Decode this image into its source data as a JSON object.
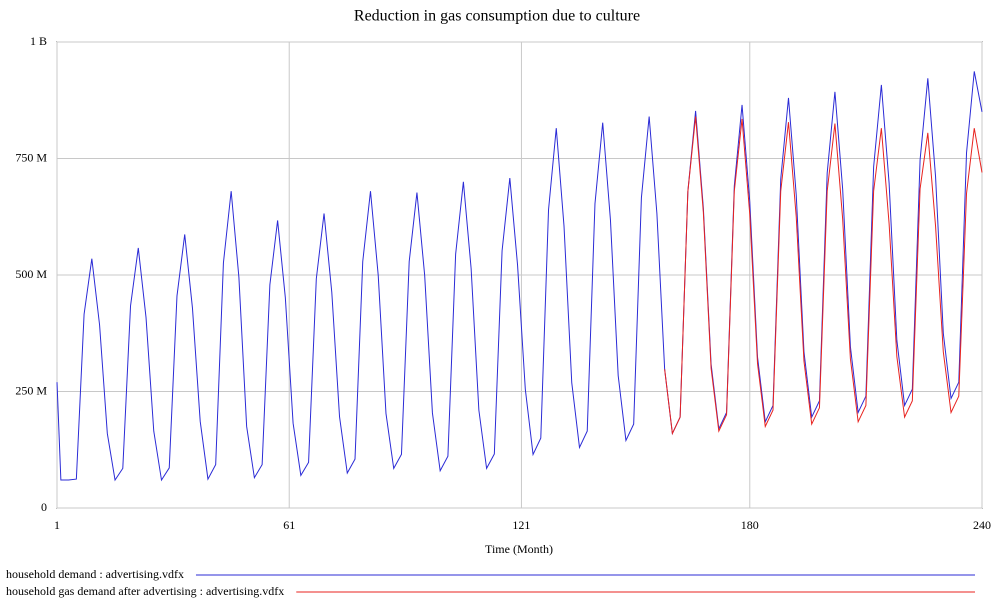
{
  "chart_data": {
    "type": "line",
    "title": "Reduction in gas consumption due to culture",
    "x_label": "Time (Month)",
    "x": [
      1,
      2,
      4,
      6,
      8,
      10,
      12,
      14,
      16,
      18,
      20,
      22,
      24,
      26,
      28,
      30,
      32,
      34,
      36,
      38,
      40,
      42,
      44,
      46,
      48,
      50,
      52,
      54,
      56,
      58,
      60,
      62,
      64,
      66,
      68,
      70,
      72,
      74,
      76,
      78,
      80,
      82,
      84,
      86,
      88,
      90,
      92,
      94,
      96,
      98,
      100,
      102,
      104,
      106,
      108,
      110,
      112,
      114,
      116,
      118,
      120,
      122,
      124,
      126,
      128,
      130,
      132,
      134,
      136,
      138,
      140,
      142,
      144,
      146,
      148,
      150,
      152,
      154,
      156,
      158,
      160,
      162,
      164,
      166,
      168,
      170,
      172,
      174,
      176,
      178,
      180,
      182,
      184,
      186,
      188,
      190,
      192,
      194,
      196,
      198,
      200,
      202,
      204,
      206,
      208,
      210,
      212,
      214,
      216,
      218,
      220,
      222,
      224,
      226,
      228,
      230,
      232,
      234,
      236,
      238,
      240
    ],
    "series": [
      {
        "name": "household demand : advertising.vdfx",
        "color": "#2b2bd6",
        "values": [
          270000000,
          60000000,
          60000000,
          62000000,
          416000000,
          535000000,
          393000000,
          160000000,
          60000000,
          85000000,
          434000000,
          558000000,
          409000000,
          165000000,
          60000000,
          86000000,
          455000000,
          587000000,
          429000000,
          186000000,
          62000000,
          93000000,
          526000000,
          680000000,
          495000000,
          175000000,
          65000000,
          93000000,
          479000000,
          617000000,
          451000000,
          182000000,
          70000000,
          98000000,
          492000000,
          632000000,
          463000000,
          196000000,
          75000000,
          105000000,
          529000000,
          680000000,
          499000000,
          203000000,
          85000000,
          115000000,
          529000000,
          677000000,
          499000000,
          204000000,
          80000000,
          111000000,
          545000000,
          700000000,
          514000000,
          210000000,
          85000000,
          116000000,
          552000000,
          708000000,
          521000000,
          255000000,
          115000000,
          150000000,
          640000000,
          815000000,
          605000000,
          269000000,
          130000000,
          165000000,
          653000000,
          827000000,
          618000000,
          284000000,
          145000000,
          180000000,
          666000000,
          840000000,
          632000000,
          298000000,
          160000000,
          195000000,
          679000000,
          852000000,
          644000000,
          309000000,
          170000000,
          205000000,
          691000000,
          865000000,
          657000000,
          324000000,
          185000000,
          220000000,
          706000000,
          880000000,
          672000000,
          335000000,
          195000000,
          230000000,
          719000000,
          893000000,
          684000000,
          346000000,
          205000000,
          240000000,
          732000000,
          908000000,
          697000000,
          360000000,
          220000000,
          255000000,
          747000000,
          922000000,
          711000000,
          375000000,
          235000000,
          270000000,
          762000000,
          937000000,
          850000000
        ]
      },
      {
        "name": "household gas demand after advertising : advertising.vdfx",
        "color": "#e8231f",
        "values": [
          null,
          null,
          null,
          null,
          null,
          null,
          null,
          null,
          null,
          null,
          null,
          null,
          null,
          null,
          null,
          null,
          null,
          null,
          null,
          null,
          null,
          null,
          null,
          null,
          null,
          null,
          null,
          null,
          null,
          null,
          null,
          null,
          null,
          null,
          null,
          null,
          null,
          null,
          null,
          null,
          null,
          null,
          null,
          null,
          null,
          null,
          null,
          null,
          null,
          null,
          null,
          null,
          null,
          null,
          null,
          null,
          null,
          null,
          null,
          null,
          null,
          null,
          null,
          null,
          null,
          null,
          null,
          null,
          null,
          null,
          null,
          null,
          null,
          null,
          null,
          null,
          null,
          null,
          null,
          298000000,
          160000000,
          195000000,
          679000000,
          840000000,
          635000000,
          300000000,
          165000000,
          200000000,
          680000000,
          835000000,
          630000000,
          310000000,
          175000000,
          210000000,
          680000000,
          828000000,
          625000000,
          315000000,
          180000000,
          215000000,
          680000000,
          825000000,
          620000000,
          320000000,
          185000000,
          220000000,
          680000000,
          815000000,
          610000000,
          325000000,
          195000000,
          230000000,
          685000000,
          805000000,
          605000000,
          335000000,
          205000000,
          240000000,
          675000000,
          815000000,
          720000000
        ]
      }
    ],
    "xlim": [
      1,
      240
    ],
    "xticks": [
      1,
      61,
      121,
      180,
      240
    ],
    "ylim": [
      0,
      1000000000
    ],
    "yticks": [
      0,
      {
        "value": 250000000,
        "label": "250 M"
      },
      {
        "value": 500000000,
        "label": "500 M"
      },
      {
        "value": 750000000,
        "label": "750 M"
      },
      {
        "value": 1000000000,
        "label": "1 B"
      }
    ],
    "grid": true
  }
}
